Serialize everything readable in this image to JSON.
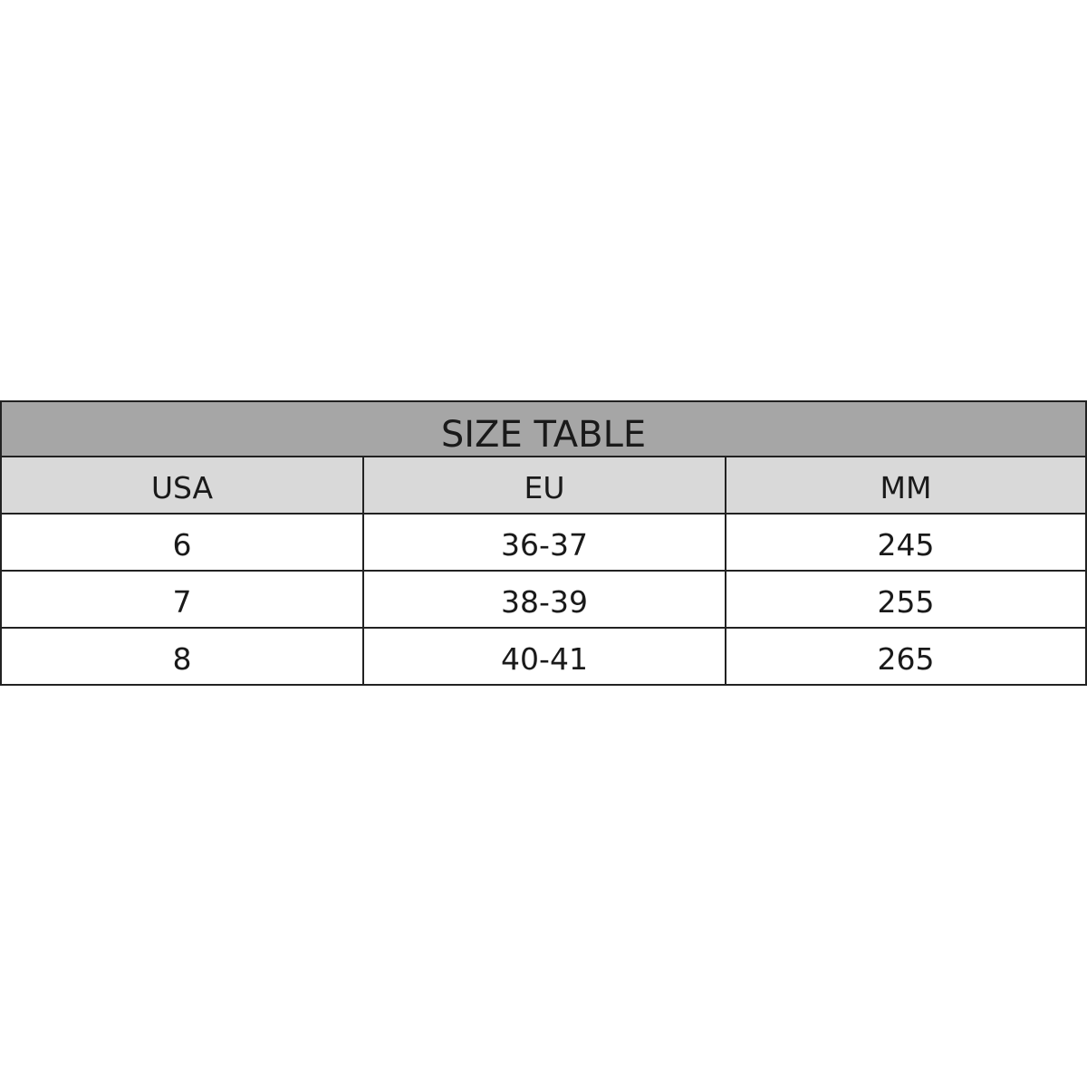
{
  "table": {
    "title": "SIZE TABLE",
    "headers": [
      "USA",
      "EU",
      "MM"
    ],
    "rows": [
      [
        "6",
        "36-37",
        "245"
      ],
      [
        "7",
        "38-39",
        "255"
      ],
      [
        "8",
        "40-41",
        "265"
      ]
    ],
    "colors": {
      "title_bg": "#a6a6a6",
      "header_bg": "#d9d9d9",
      "border": "#222222"
    }
  }
}
